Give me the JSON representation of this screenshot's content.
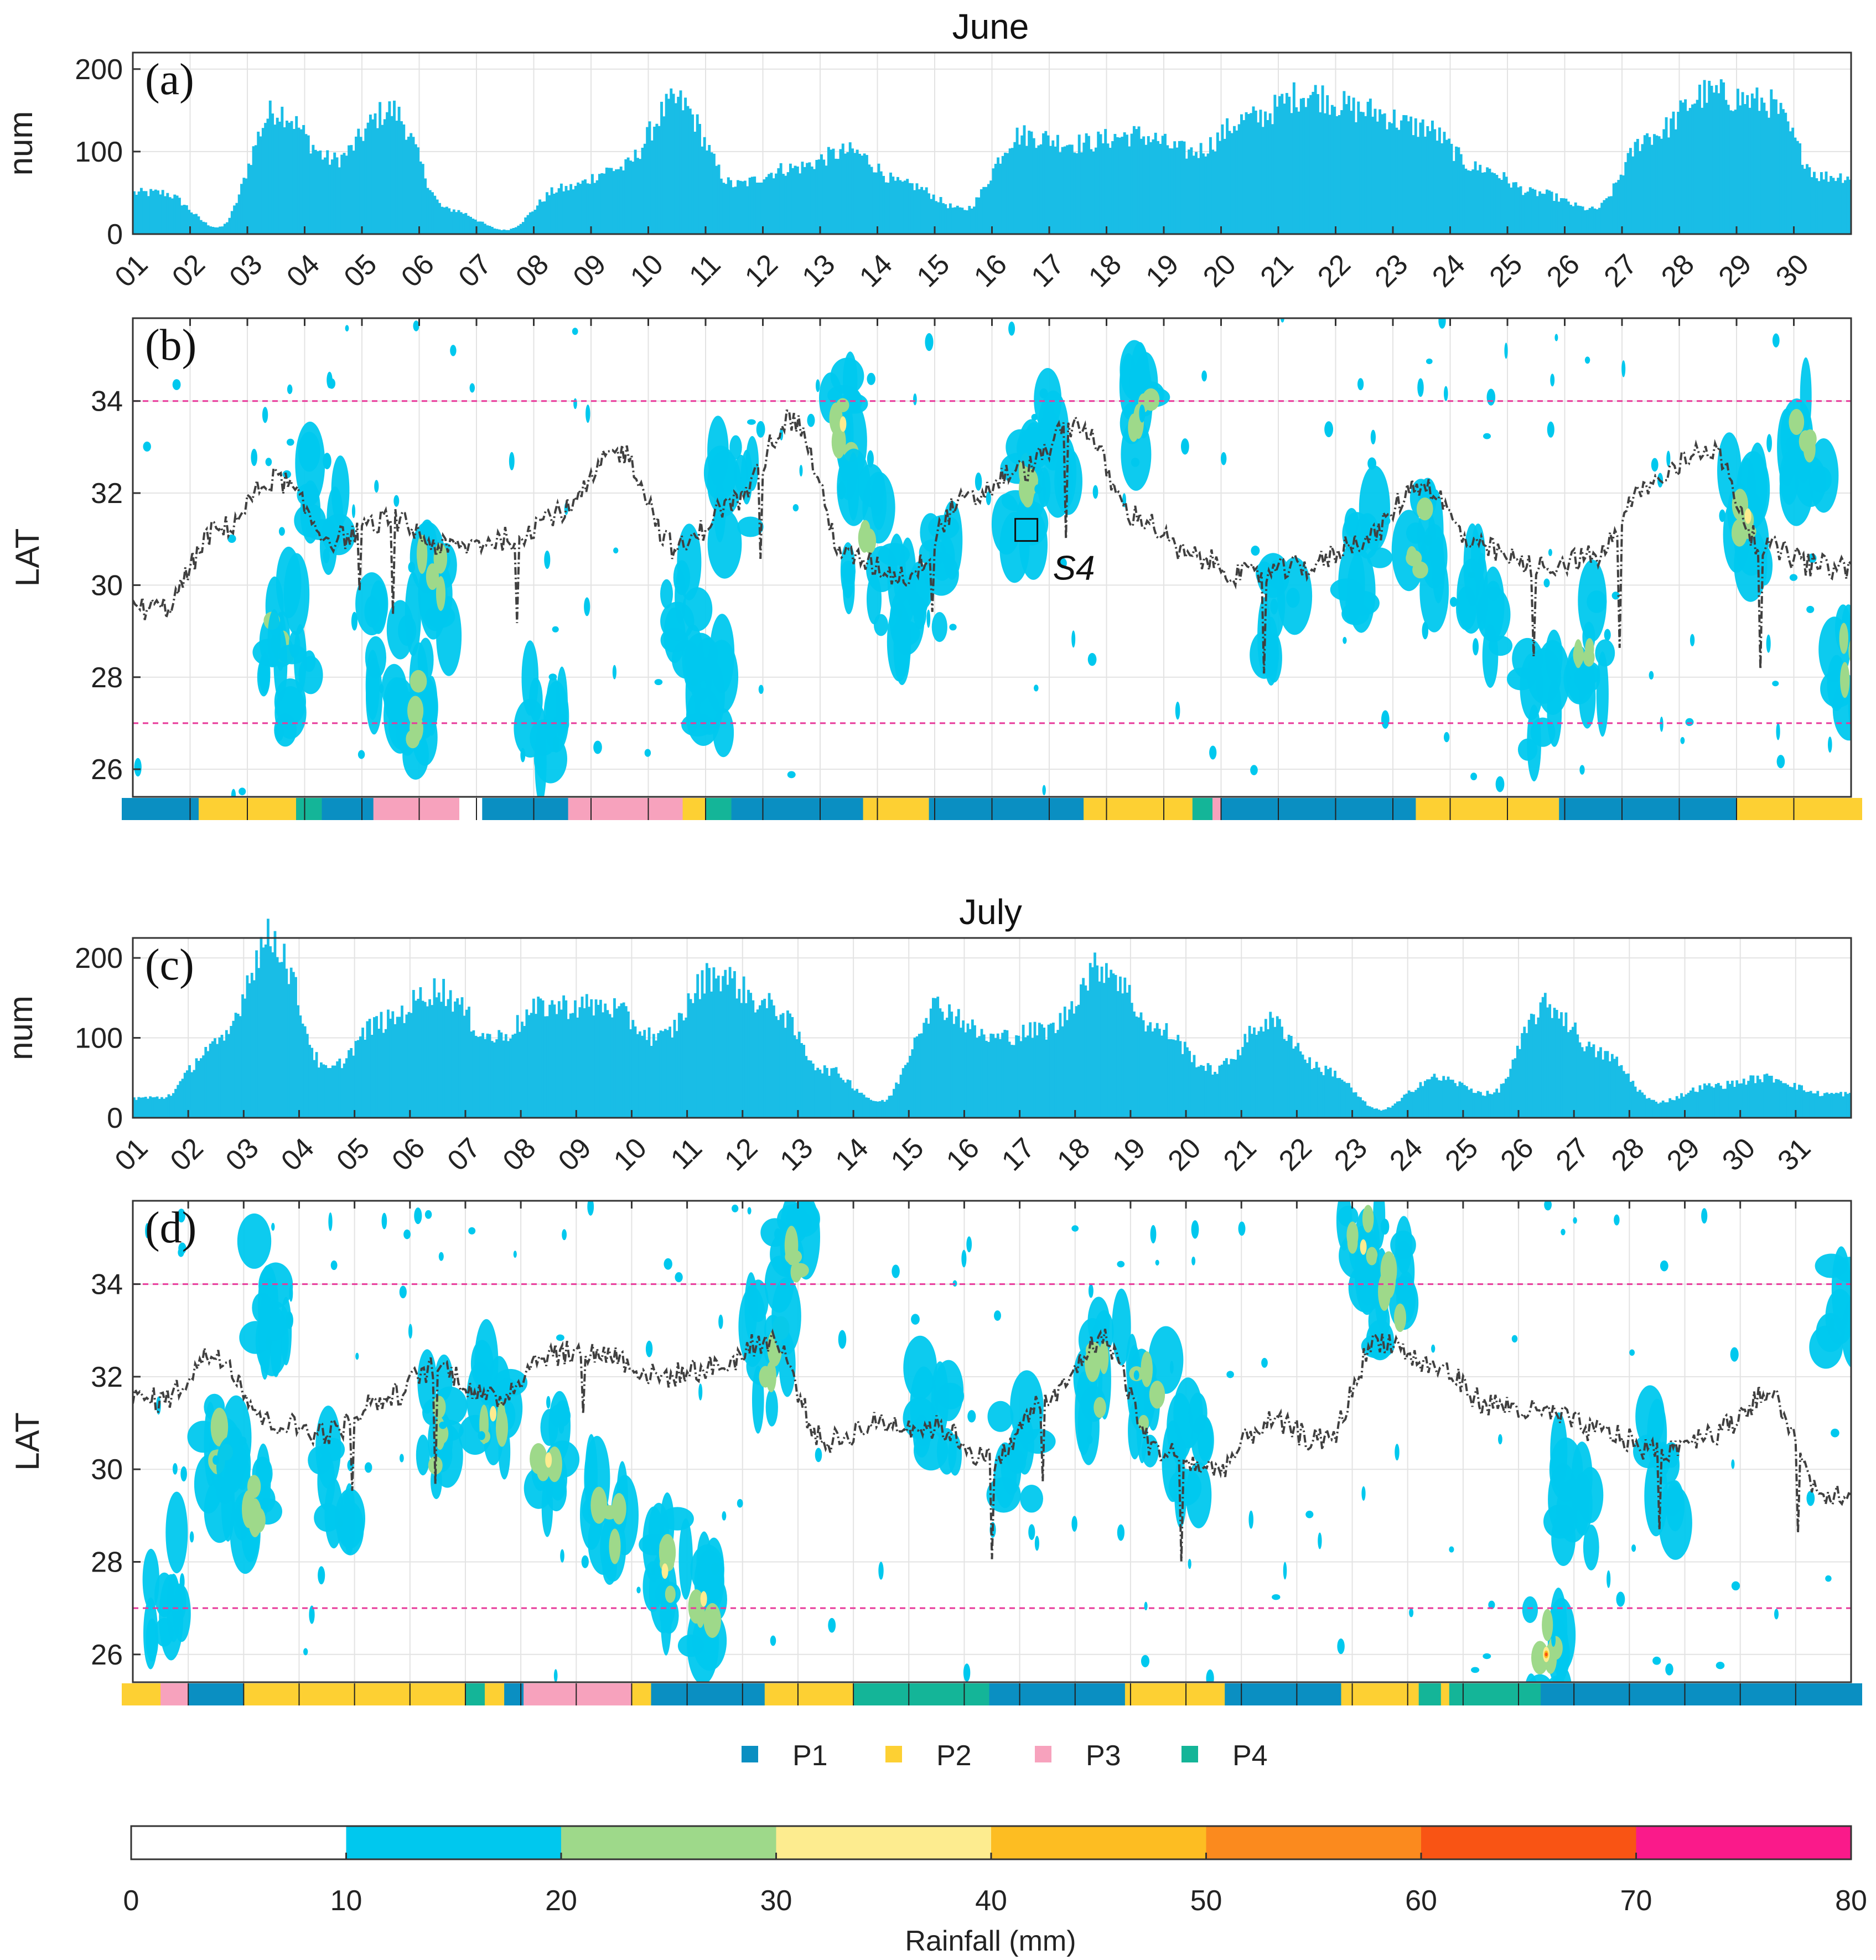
{
  "chart_data": [
    {
      "id": "a",
      "type": "bar",
      "panel_label": "(a)",
      "title": "June",
      "ylabel": "num",
      "ylim": [
        0,
        220
      ],
      "yticks": [
        0,
        100,
        200
      ],
      "x_tick_labels": [
        "01",
        "02",
        "03",
        "04",
        "05",
        "06",
        "07",
        "08",
        "09",
        "10",
        "11",
        "12",
        "13",
        "14",
        "15",
        "16",
        "17",
        "18",
        "19",
        "20",
        "21",
        "22",
        "23",
        "24",
        "25",
        "26",
        "27",
        "28",
        "29",
        "30"
      ],
      "n_days": 30,
      "daily_values": [
        50,
        8,
        150,
        90,
        150,
        30,
        5,
        55,
        80,
        160,
        60,
        80,
        100,
        60,
        30,
        120,
        110,
        120,
        100,
        140,
        170,
        150,
        130,
        80,
        50,
        30,
        120,
        170,
        160,
        70
      ],
      "grid": true
    },
    {
      "id": "b",
      "type": "line",
      "panel_label": "(b)",
      "ylabel": "LAT",
      "ylim": [
        25.4,
        35.8
      ],
      "yticks": [
        26,
        28,
        30,
        32,
        34
      ],
      "reference_lines": [
        34,
        27
      ],
      "n_days": 30,
      "series": [
        {
          "name": "rain belt latitude",
          "daily_values": [
            29.5,
            31.2,
            32.3,
            31.0,
            31.4,
            30.8,
            31.0,
            31.6,
            32.9,
            30.8,
            31.8,
            33.6,
            30.6,
            30.2,
            31.8,
            32.5,
            33.5,
            31.5,
            30.6,
            30.2,
            30.4,
            31.0,
            32.2,
            30.8,
            30.4,
            30.6,
            32.2,
            33.0,
            30.8,
            30.4
          ]
        }
      ],
      "annotation": "S4",
      "annotation_day": 15.6,
      "annotation_lat": 31.2,
      "rainfall_patches": [
        {
          "day": 2.6,
          "lat": 29.0,
          "value": 22
        },
        {
          "day": 2.8,
          "lat": 27.8,
          "value": 18
        },
        {
          "day": 3.3,
          "lat": 31.8,
          "value": 15
        },
        {
          "day": 4.5,
          "lat": 28.5,
          "value": 14
        },
        {
          "day": 5.2,
          "lat": 30.0,
          "value": 25
        },
        {
          "day": 5.0,
          "lat": 27.3,
          "value": 20
        },
        {
          "day": 7.2,
          "lat": 27.0,
          "value": 14
        },
        {
          "day": 9.6,
          "lat": 29.5,
          "value": 15
        },
        {
          "day": 10.0,
          "lat": 27.5,
          "value": 14
        },
        {
          "day": 10.5,
          "lat": 32.0,
          "value": 16
        },
        {
          "day": 12.4,
          "lat": 33.5,
          "value": 30
        },
        {
          "day": 12.8,
          "lat": 31.0,
          "value": 24
        },
        {
          "day": 13.2,
          "lat": 29.8,
          "value": 18
        },
        {
          "day": 14.0,
          "lat": 30.2,
          "value": 15
        },
        {
          "day": 15.5,
          "lat": 31.8,
          "value": 28
        },
        {
          "day": 16.0,
          "lat": 33.0,
          "value": 16
        },
        {
          "day": 17.6,
          "lat": 33.8,
          "value": 22
        },
        {
          "day": 20.0,
          "lat": 29.3,
          "value": 16
        },
        {
          "day": 21.5,
          "lat": 30.5,
          "value": 18
        },
        {
          "day": 22.5,
          "lat": 31.0,
          "value": 20
        },
        {
          "day": 23.6,
          "lat": 29.5,
          "value": 15
        },
        {
          "day": 24.5,
          "lat": 27.5,
          "value": 18
        },
        {
          "day": 25.4,
          "lat": 28.5,
          "value": 22
        },
        {
          "day": 28.2,
          "lat": 31.5,
          "value": 30
        },
        {
          "day": 29.2,
          "lat": 33.0,
          "value": 26
        },
        {
          "day": 30.0,
          "lat": 28.5,
          "value": 24
        }
      ],
      "regime_bar": [
        {
          "from": 0,
          "to": 1.15,
          "regime": "P1"
        },
        {
          "from": 1.15,
          "to": 2.85,
          "regime": "P2"
        },
        {
          "from": 2.85,
          "to": 3.3,
          "regime": "P4"
        },
        {
          "from": 3.3,
          "to": 4.2,
          "regime": "P1"
        },
        {
          "from": 4.2,
          "to": 5.7,
          "regime": "P3"
        },
        {
          "from": 5.7,
          "to": 6.1,
          "regime": "none"
        },
        {
          "from": 6.1,
          "to": 7.6,
          "regime": "P1"
        },
        {
          "from": 7.6,
          "to": 9.6,
          "regime": "P3"
        },
        {
          "from": 9.6,
          "to": 10.0,
          "regime": "P2"
        },
        {
          "from": 10.0,
          "to": 10.45,
          "regime": "P4"
        },
        {
          "from": 10.45,
          "to": 12.75,
          "regime": "P1"
        },
        {
          "from": 12.75,
          "to": 13.9,
          "regime": "P2"
        },
        {
          "from": 13.9,
          "to": 16.6,
          "regime": "P1"
        },
        {
          "from": 16.6,
          "to": 18.5,
          "regime": "P2"
        },
        {
          "from": 18.5,
          "to": 18.85,
          "regime": "P4"
        },
        {
          "from": 18.85,
          "to": 19.0,
          "regime": "P3"
        },
        {
          "from": 19.0,
          "to": 22.4,
          "regime": "P1"
        },
        {
          "from": 22.4,
          "to": 24.9,
          "regime": "P2"
        },
        {
          "from": 24.9,
          "to": 28.0,
          "regime": "P1"
        },
        {
          "from": 28.0,
          "to": 30,
          "regime": "P2"
        }
      ]
    },
    {
      "id": "c",
      "type": "bar",
      "panel_label": "(c)",
      "title": "July",
      "ylabel": "num",
      "ylim": [
        0,
        225
      ],
      "yticks": [
        0,
        100,
        200
      ],
      "x_tick_labels": [
        "01",
        "02",
        "03",
        "04",
        "05",
        "06",
        "07",
        "08",
        "09",
        "10",
        "11",
        "12",
        "13",
        "14",
        "15",
        "16",
        "17",
        "18",
        "19",
        "20",
        "21",
        "22",
        "23",
        "24",
        "25",
        "26",
        "27",
        "28",
        "29",
        "30",
        "31"
      ],
      "n_days": 31,
      "daily_values": [
        25,
        90,
        225,
        60,
        120,
        160,
        100,
        140,
        140,
        100,
        180,
        140,
        60,
        20,
        140,
        100,
        110,
        190,
        110,
        60,
        120,
        60,
        10,
        50,
        30,
        140,
        80,
        20,
        40,
        50,
        30
      ],
      "grid": true
    },
    {
      "id": "d",
      "type": "line",
      "panel_label": "(d)",
      "ylabel": "LAT",
      "ylim": [
        25.4,
        35.8
      ],
      "yticks": [
        26,
        28,
        30,
        32,
        34
      ],
      "reference_lines": [
        34,
        27
      ],
      "n_days": 31,
      "series": [
        {
          "name": "rain belt latitude",
          "daily_values": [
            31.5,
            32.5,
            31.0,
            30.8,
            31.5,
            32.2,
            31.5,
            32.5,
            32.5,
            32.0,
            32.2,
            32.8,
            30.6,
            31.0,
            30.9,
            30.2,
            31.5,
            32.8,
            30.4,
            30.0,
            31.0,
            30.6,
            32.8,
            32.2,
            31.4,
            31.2,
            30.8,
            30.4,
            30.8,
            31.6,
            29.5
          ]
        }
      ],
      "rainfall_patches": [
        {
          "day": 0.6,
          "lat": 27.5,
          "value": 16
        },
        {
          "day": 1.6,
          "lat": 30.2,
          "value": 26
        },
        {
          "day": 2.1,
          "lat": 29.0,
          "value": 20
        },
        {
          "day": 2.5,
          "lat": 33.8,
          "value": 15
        },
        {
          "day": 3.6,
          "lat": 29.5,
          "value": 18
        },
        {
          "day": 5.5,
          "lat": 30.8,
          "value": 28
        },
        {
          "day": 6.5,
          "lat": 31.2,
          "value": 30
        },
        {
          "day": 7.5,
          "lat": 30.2,
          "value": 32
        },
        {
          "day": 8.6,
          "lat": 29.0,
          "value": 28
        },
        {
          "day": 9.6,
          "lat": 27.8,
          "value": 30
        },
        {
          "day": 10.3,
          "lat": 27.2,
          "value": 34
        },
        {
          "day": 11.5,
          "lat": 32.5,
          "value": 24
        },
        {
          "day": 11.9,
          "lat": 34.5,
          "value": 26
        },
        {
          "day": 14.5,
          "lat": 31.0,
          "value": 14
        },
        {
          "day": 16.0,
          "lat": 30.5,
          "value": 16
        },
        {
          "day": 17.5,
          "lat": 32.0,
          "value": 24
        },
        {
          "day": 18.3,
          "lat": 31.5,
          "value": 22
        },
        {
          "day": 19.0,
          "lat": 30.6,
          "value": 18
        },
        {
          "day": 22.2,
          "lat": 34.8,
          "value": 30
        },
        {
          "day": 22.7,
          "lat": 33.8,
          "value": 26
        },
        {
          "day": 25.5,
          "lat": 26.0,
          "value": 40
        },
        {
          "day": 26.0,
          "lat": 29.2,
          "value": 16
        },
        {
          "day": 27.5,
          "lat": 30.0,
          "value": 15
        },
        {
          "day": 30.8,
          "lat": 33.5,
          "value": 16
        }
      ],
      "regime_bar": [
        {
          "from": 0,
          "to": 0.5,
          "regime": "P2"
        },
        {
          "from": 0.5,
          "to": 1.0,
          "regime": "P3"
        },
        {
          "from": 1.0,
          "to": 2.0,
          "regime": "P1"
        },
        {
          "from": 2.0,
          "to": 6.0,
          "regime": "P2"
        },
        {
          "from": 6.0,
          "to": 6.35,
          "regime": "P4"
        },
        {
          "from": 6.35,
          "to": 6.7,
          "regime": "P2"
        },
        {
          "from": 6.7,
          "to": 7.05,
          "regime": "P1"
        },
        {
          "from": 7.05,
          "to": 9.0,
          "regime": "P3"
        },
        {
          "from": 9.0,
          "to": 9.35,
          "regime": "P2"
        },
        {
          "from": 9.35,
          "to": 11.4,
          "regime": "P1"
        },
        {
          "from": 11.4,
          "to": 13.0,
          "regime": "P2"
        },
        {
          "from": 13.0,
          "to": 15.45,
          "regime": "P4"
        },
        {
          "from": 15.45,
          "to": 17.9,
          "regime": "P1"
        },
        {
          "from": 17.9,
          "to": 19.7,
          "regime": "P2"
        },
        {
          "from": 19.7,
          "to": 21.8,
          "regime": "P1"
        },
        {
          "from": 21.8,
          "to": 23.2,
          "regime": "P2"
        },
        {
          "from": 23.2,
          "to": 23.6,
          "regime": "P4"
        },
        {
          "from": 23.6,
          "to": 23.75,
          "regime": "P2"
        },
        {
          "from": 23.75,
          "to": 25.4,
          "regime": "P4"
        },
        {
          "from": 25.4,
          "to": 31,
          "regime": "P1"
        }
      ]
    }
  ],
  "regime_legend": [
    {
      "key": "P1",
      "label": "P1",
      "color": "#0a8fc2"
    },
    {
      "key": "P2",
      "label": "P2",
      "color": "#fdd033"
    },
    {
      "key": "P3",
      "label": "P3",
      "color": "#f7a2bd"
    },
    {
      "key": "P4",
      "label": "P4",
      "color": "#14b598"
    }
  ],
  "colorbar": {
    "label": "Rainfall (mm)",
    "ticks": [
      "0",
      "10",
      "20",
      "30",
      "40",
      "50",
      "60",
      "70",
      "80"
    ],
    "colors": [
      "#ffffff",
      "#00c8ee",
      "#9ed98a",
      "#fdec8f",
      "#fdbd22",
      "#fb8a1e",
      "#f95414",
      "#fa1a8a"
    ]
  },
  "colors": {
    "bar_fill": "#19bde6",
    "line": "#404040",
    "reference_line": "#e8399a",
    "grid": "#e3e3e3"
  }
}
